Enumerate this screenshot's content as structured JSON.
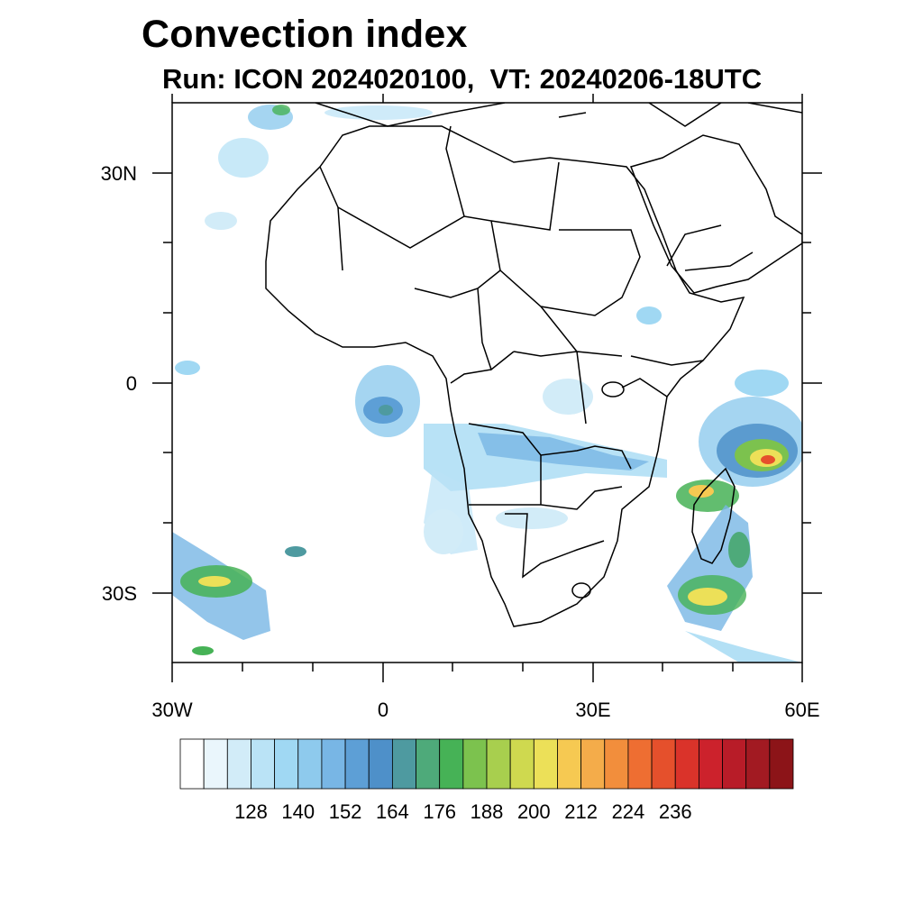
{
  "title": "Convection index",
  "subtitle": "Run: ICON 2024020100,  VT: 20240206-18UTC",
  "axes": {
    "lat_labels": [
      "30N",
      "0",
      "30S"
    ],
    "lon_labels": [
      "30W",
      "0",
      "30E",
      "60E"
    ]
  },
  "colorbar": {
    "labels": [
      "128",
      "140",
      "152",
      "164",
      "176",
      "188",
      "200",
      "212",
      "224",
      "236"
    ],
    "colors": [
      "#ffffff",
      "#eaf6fc",
      "#d2ecf8",
      "#bae3f6",
      "#a0d8f3",
      "#8ecaed",
      "#78b6e5",
      "#5d9fd6",
      "#4e90c9",
      "#4e9aa0",
      "#4eaa7a",
      "#46b256",
      "#7cc24e",
      "#a8cf4e",
      "#cfd94f",
      "#ece058",
      "#f6c952",
      "#f4ac4a",
      "#f28e3c",
      "#ee6e32",
      "#e5502c",
      "#da332a",
      "#cc222c",
      "#b81c28",
      "#a21a22",
      "#8c1418"
    ]
  },
  "map": {
    "extent_lon": [
      -30,
      60
    ],
    "extent_lat": [
      -40,
      40
    ],
    "land_color": "#ffffff",
    "border_color": "#000000"
  }
}
